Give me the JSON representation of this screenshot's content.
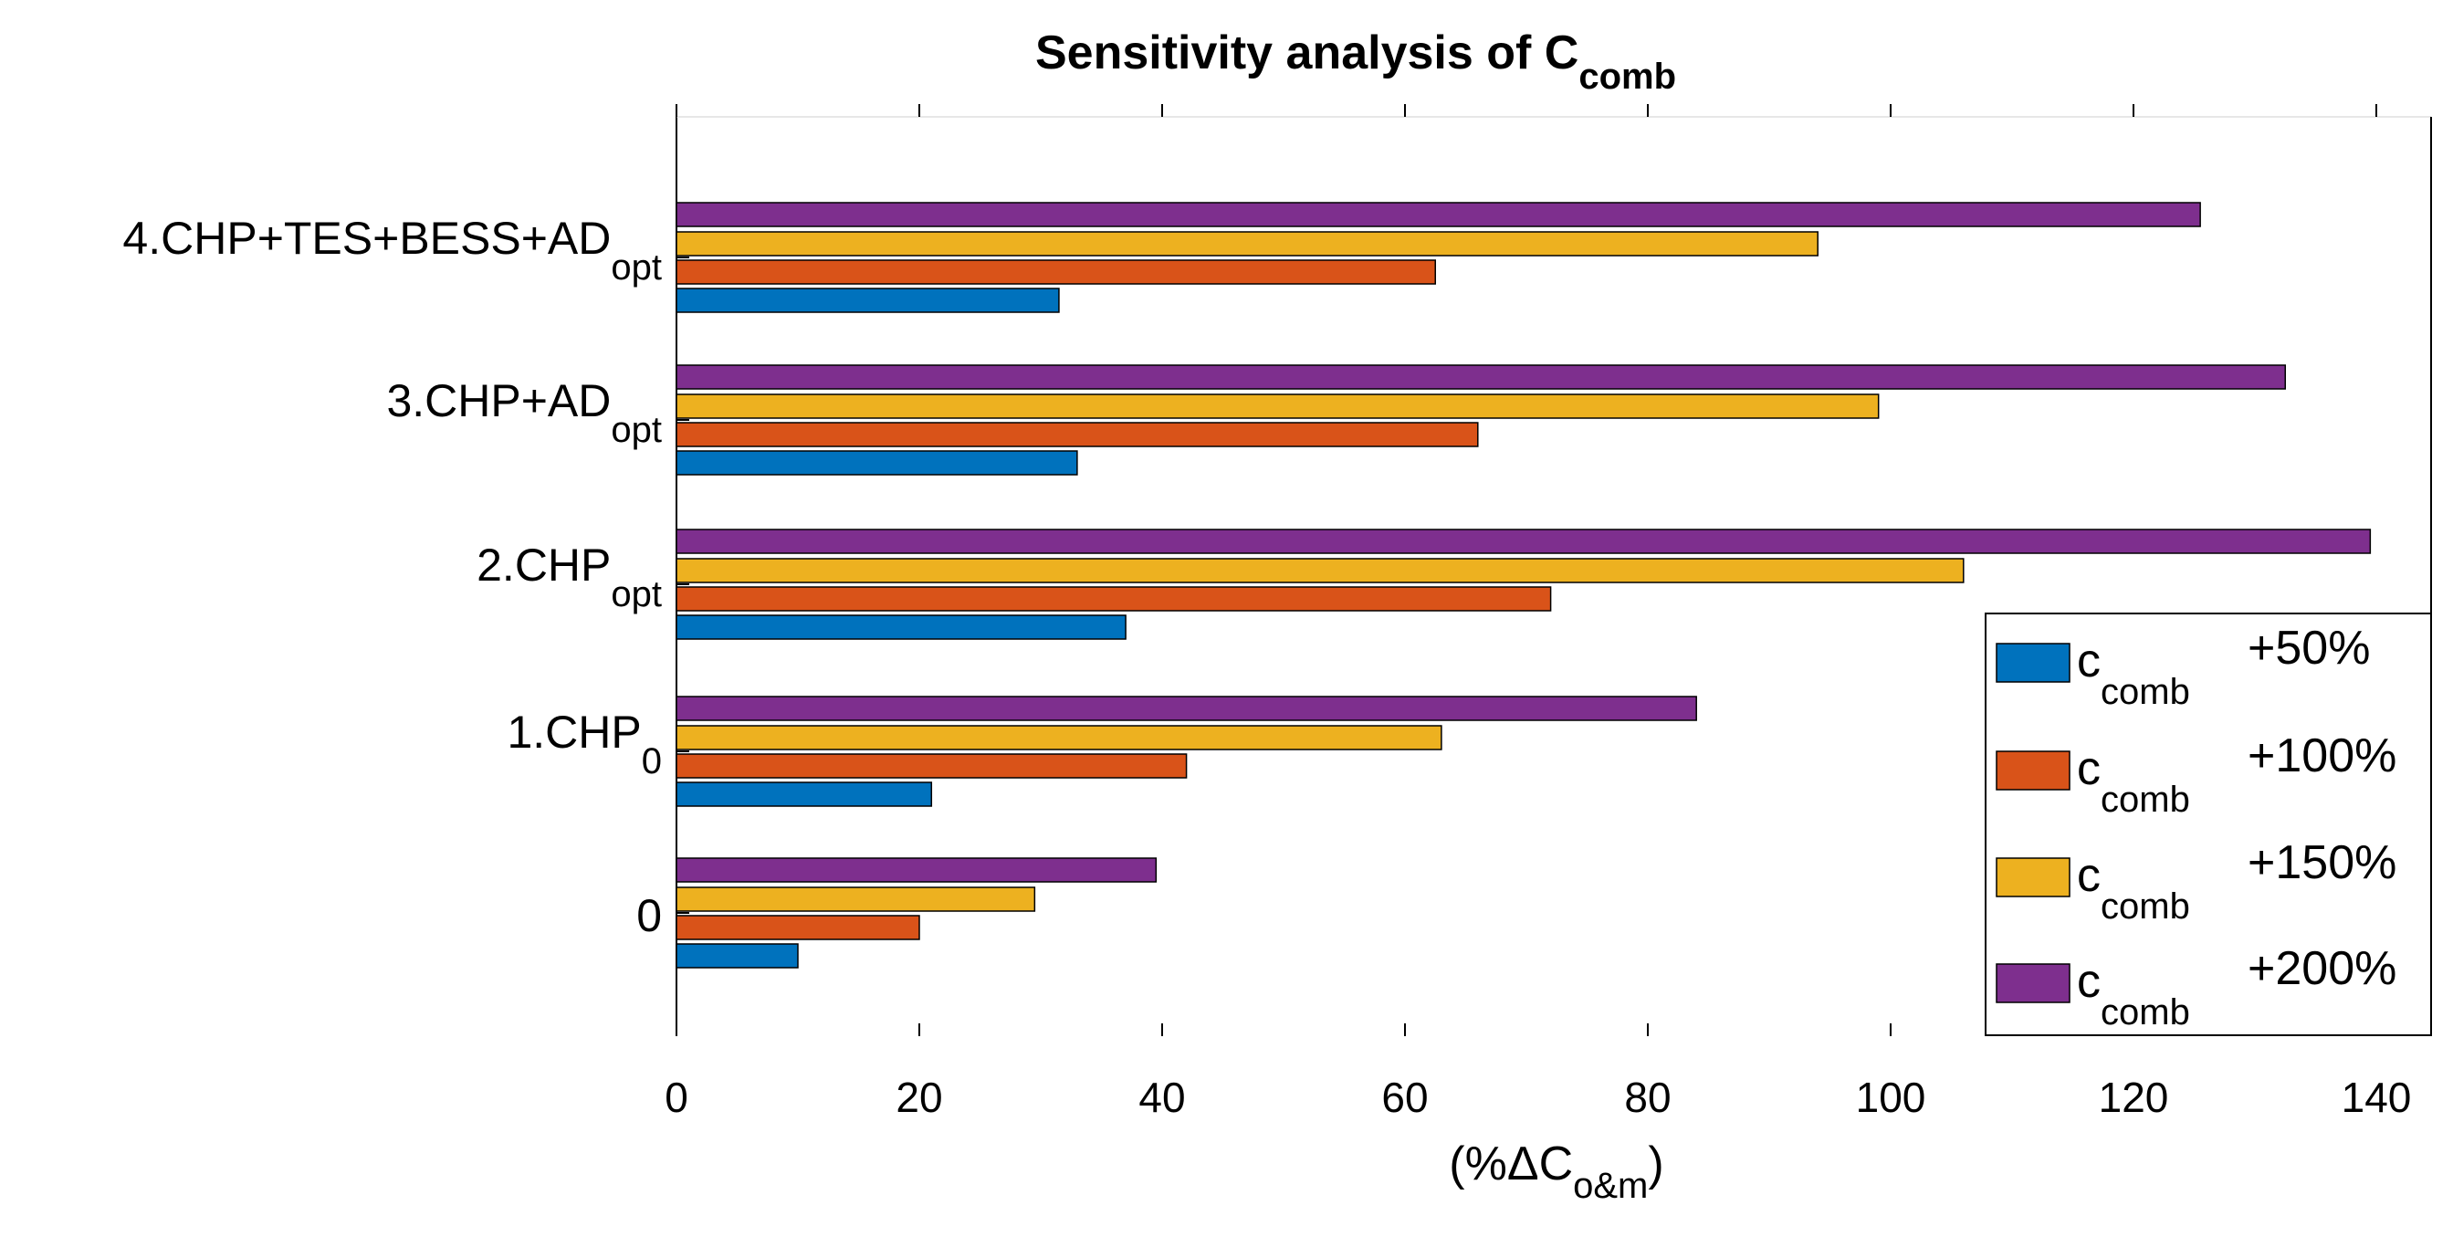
{
  "chart_data": {
    "type": "bar",
    "orientation": "horizontal",
    "title": "Sensitivity analysis of C",
    "title_sub": "comb",
    "xlabel": "(%ΔC",
    "xlabel_sub": "o&m",
    "xlabel_end": ")",
    "xlim": [
      0,
      140
    ],
    "xticks": [
      "0",
      "20",
      "40",
      "60",
      "80",
      "100",
      "120",
      "140"
    ],
    "grid": false,
    "legend_position": "bottom-right",
    "categories": [
      {
        "main": "0",
        "sub": ""
      },
      {
        "main": "1.CHP",
        "sub": "0"
      },
      {
        "main": "2.CHP",
        "sub": "opt"
      },
      {
        "main": "3.CHP+AD",
        "sub": "opt"
      },
      {
        "main": "4.CHP+TES+BESS+AD",
        "sub": "opt"
      }
    ],
    "series": [
      {
        "name_main": "c",
        "name_sub": "comb",
        "name_suffix": "+50%",
        "color": "#0072BD",
        "values": [
          10,
          21,
          37,
          33,
          31.5
        ]
      },
      {
        "name_main": "c",
        "name_sub": "comb",
        "name_suffix": "+100%",
        "color": "#D95319",
        "values": [
          20,
          42,
          72,
          66,
          62.5
        ]
      },
      {
        "name_main": "c",
        "name_sub": "comb",
        "name_suffix": "+150%",
        "color": "#EDB120",
        "values": [
          29.5,
          63,
          106,
          99,
          94
        ]
      },
      {
        "name_main": "c",
        "name_sub": "comb",
        "name_suffix": "+200%",
        "color": "#7E2F8E",
        "values": [
          39.5,
          84,
          139.5,
          132.5,
          125.5
        ]
      }
    ]
  }
}
